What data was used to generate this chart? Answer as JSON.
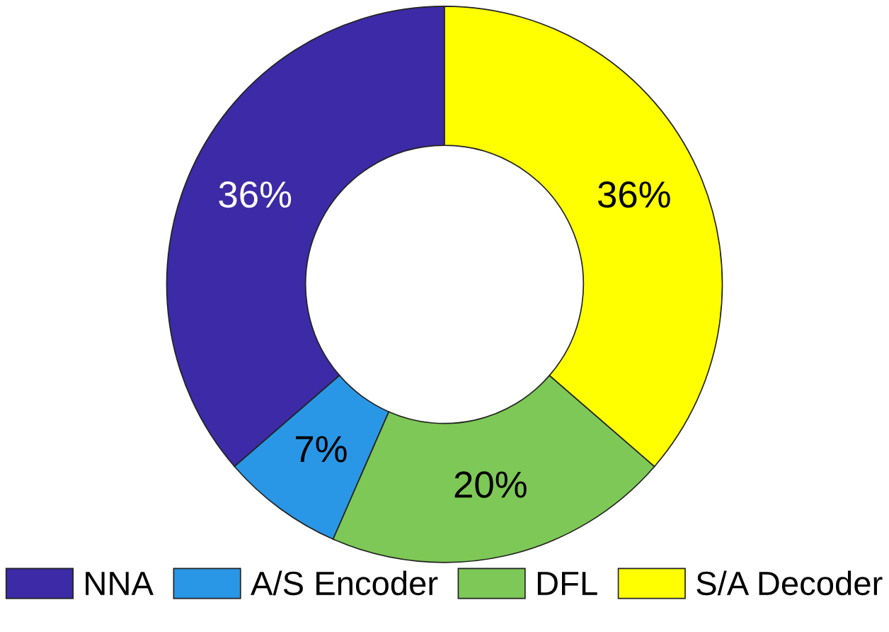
{
  "chart_data": {
    "type": "donut",
    "categories": [
      "NNA",
      "A/S Encoder",
      "DFL",
      "S/A Decoder"
    ],
    "values": [
      36,
      7,
      20,
      36
    ],
    "colors": [
      "#3d2aa6",
      "#2a97e6",
      "#7dc856",
      "#ffff00"
    ],
    "value_labels": [
      "36%",
      "7%",
      "20%",
      "36%"
    ],
    "legend": "bottom"
  }
}
